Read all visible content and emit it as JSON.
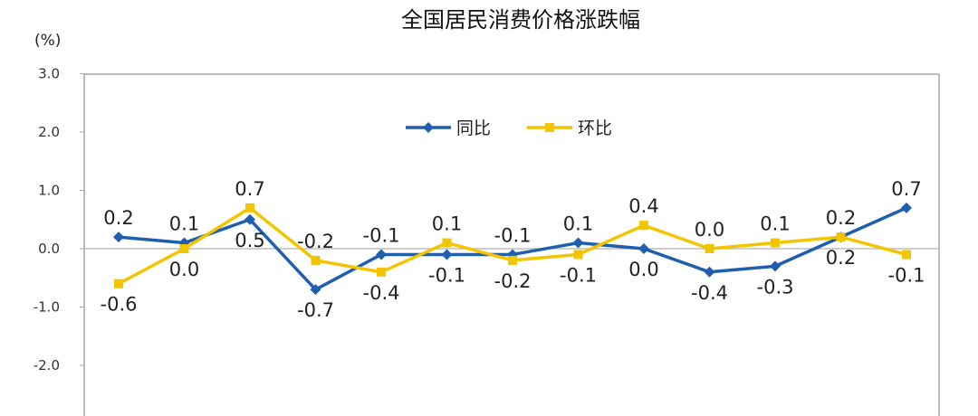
{
  "chart_data": {
    "type": "line",
    "title": "全国居民消费价格涨跌幅",
    "unit_label": "(%)",
    "ylim": [
      -3.0,
      3.0
    ],
    "y_ticks": [
      "3.0",
      "2.0",
      "1.0",
      "0.0",
      "-1.0",
      "-2.0"
    ],
    "grid": false,
    "legend_position": "top-center",
    "series": [
      {
        "name": "同比",
        "color": "#1f5fae",
        "marker": "diamond",
        "values": [
          0.2,
          0.1,
          0.5,
          -0.7,
          -0.1,
          -0.1,
          -0.1,
          0.1,
          0.0,
          -0.4,
          -0.3,
          0.2,
          0.7
        ],
        "labels": [
          "0.2",
          "0.1",
          "0.5",
          "-0.7",
          "-0.1",
          "-0.1",
          "-0.1",
          "0.1",
          "0.0",
          "-0.4",
          "-0.3",
          "0.2",
          "0.7"
        ]
      },
      {
        "name": "环比",
        "color": "#f2c500",
        "marker": "square",
        "values": [
          -0.6,
          0.0,
          0.7,
          -0.2,
          -0.4,
          0.1,
          -0.2,
          -0.1,
          0.4,
          0.0,
          0.1,
          0.2,
          -0.1
        ],
        "labels": [
          "-0.6",
          "0.0",
          "0.7",
          "-0.2",
          "-0.4",
          "0.1",
          "-0.2",
          "-0.1",
          "0.4",
          "0.0",
          "0.1",
          "0.2",
          "-0.1"
        ]
      }
    ]
  }
}
